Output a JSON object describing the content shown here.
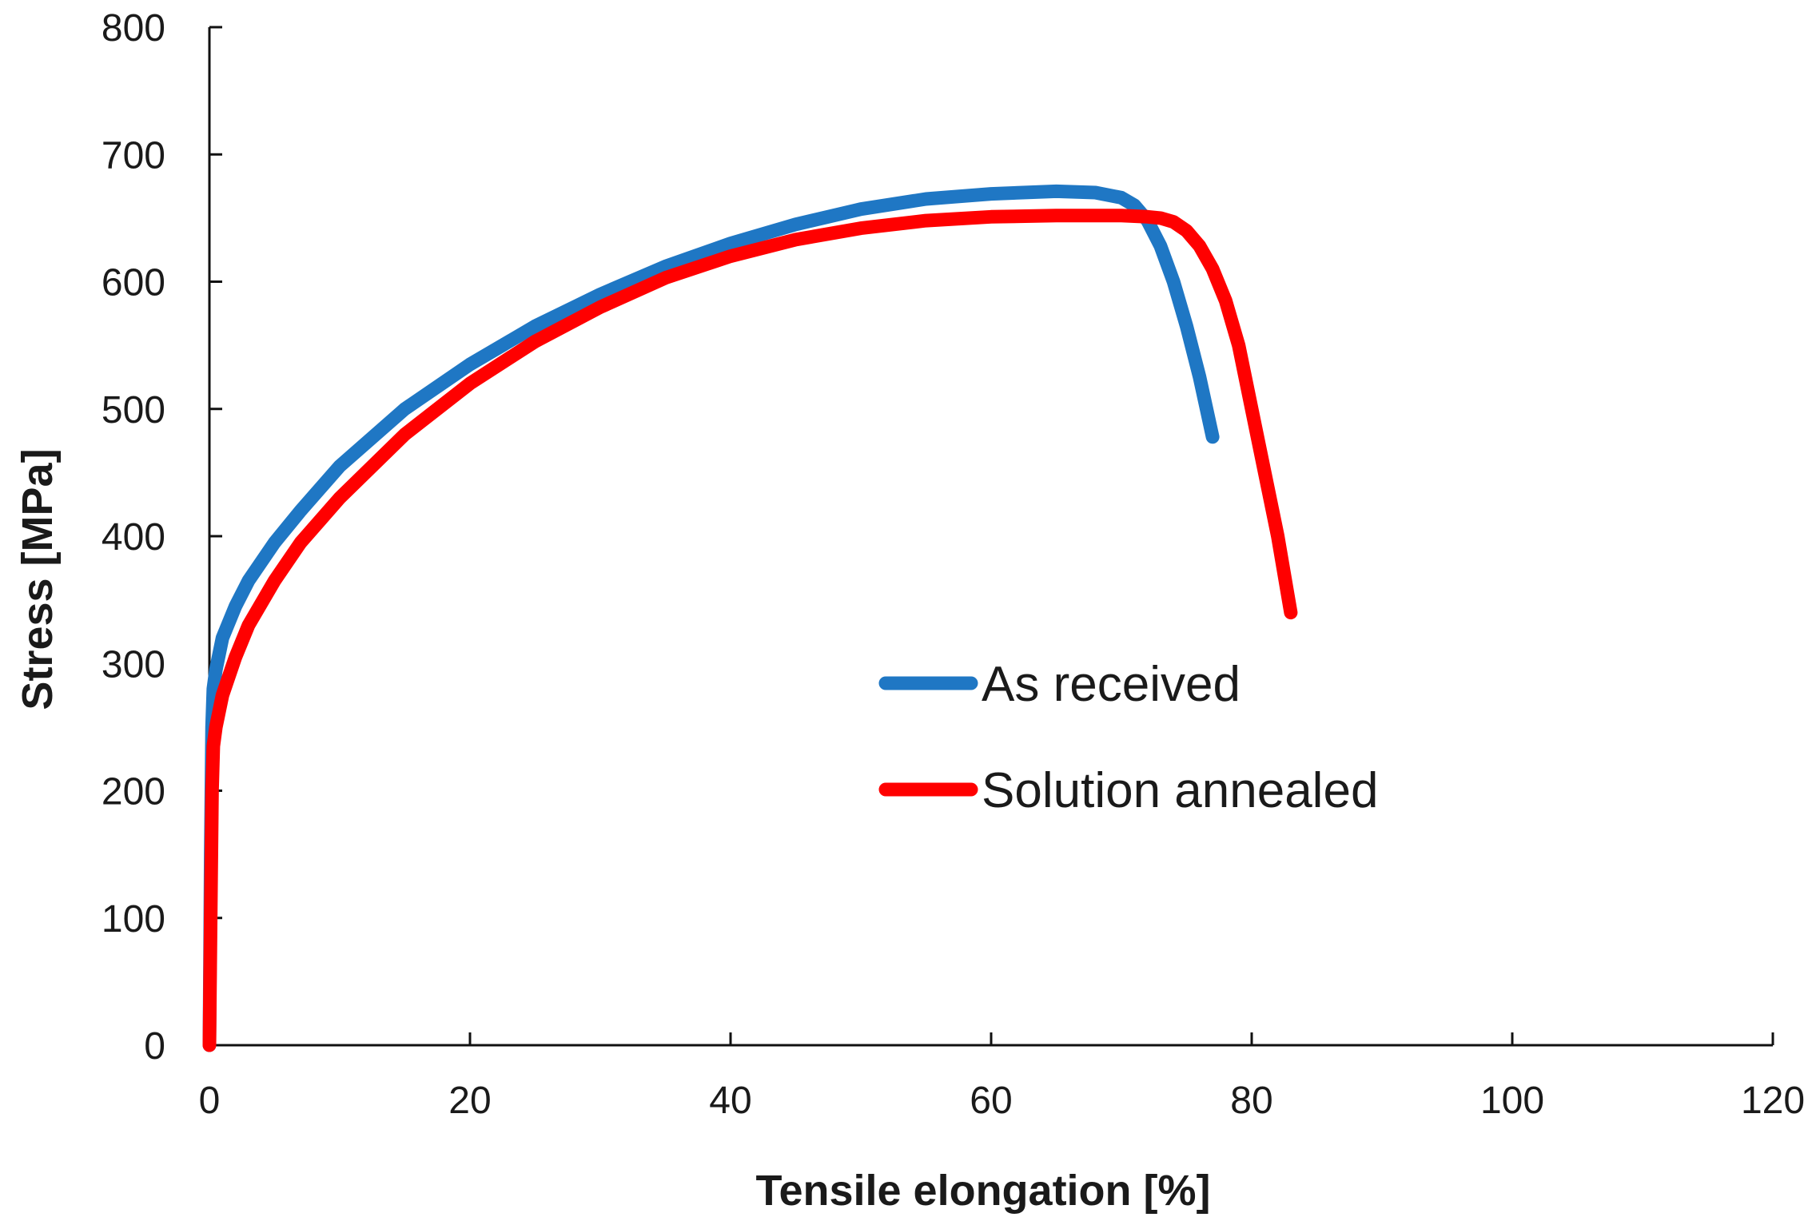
{
  "chart_data": {
    "type": "line",
    "title": "",
    "xlabel": "Tensile elongation [%]",
    "ylabel": "Stress [MPa]",
    "xlim": [
      0,
      120
    ],
    "ylim": [
      0,
      800
    ],
    "xticks": [
      0,
      20,
      40,
      60,
      80,
      100,
      120
    ],
    "yticks": [
      0,
      100,
      200,
      300,
      400,
      500,
      600,
      700,
      800
    ],
    "x_tick_labels": [
      "0",
      "20",
      "40",
      "60",
      "80",
      "100",
      "120"
    ],
    "y_tick_labels": [
      "0",
      "100",
      "200",
      "300",
      "400",
      "500",
      "600",
      "700",
      "800"
    ],
    "grid": false,
    "legend_position": "center-right",
    "series": [
      {
        "name": "As received",
        "color": "#1f77c4",
        "x": [
          0,
          0.1,
          0.2,
          0.3,
          0.5,
          1,
          2,
          3,
          5,
          7,
          10,
          15,
          20,
          25,
          30,
          35,
          40,
          45,
          50,
          55,
          60,
          65,
          68,
          70,
          71,
          72,
          73,
          74,
          75,
          76,
          77
        ],
        "y": [
          0,
          150,
          250,
          280,
          295,
          320,
          345,
          365,
          395,
          420,
          455,
          500,
          535,
          565,
          590,
          612,
          630,
          645,
          657,
          665,
          669,
          671,
          670,
          666,
          660,
          648,
          628,
          600,
          565,
          525,
          478
        ]
      },
      {
        "name": "Solution annealed",
        "color": "#ff0000",
        "x": [
          0,
          0.1,
          0.2,
          0.3,
          0.5,
          1,
          2,
          3,
          5,
          7,
          10,
          15,
          20,
          25,
          30,
          35,
          40,
          45,
          50,
          55,
          60,
          65,
          70,
          72,
          73,
          74,
          75,
          76,
          77,
          78,
          79,
          80,
          81,
          82,
          83
        ],
        "y": [
          0,
          100,
          200,
          235,
          250,
          275,
          305,
          330,
          365,
          395,
          430,
          480,
          520,
          553,
          580,
          603,
          620,
          633,
          642,
          648,
          651,
          652,
          652,
          651,
          650,
          647,
          640,
          628,
          610,
          585,
          550,
          500,
          450,
          400,
          340
        ]
      }
    ]
  }
}
